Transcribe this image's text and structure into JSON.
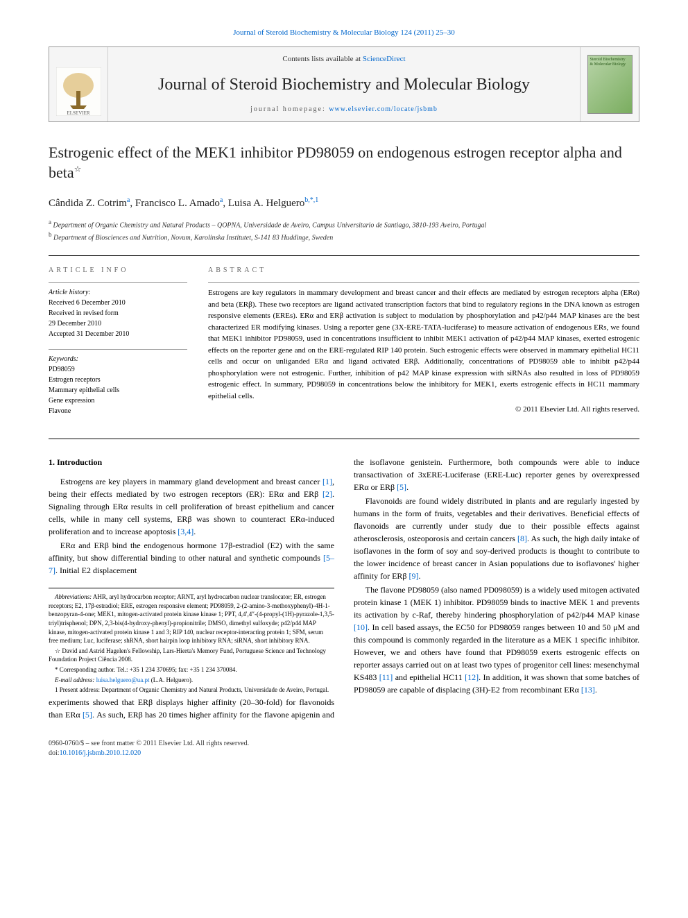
{
  "header_citation": "Journal of Steroid Biochemistry & Molecular Biology 124 (2011) 25–30",
  "banner": {
    "contents_prefix": "Contents lists available at ",
    "contents_link": "ScienceDirect",
    "journal_name": "Journal of Steroid Biochemistry and Molecular Biology",
    "homepage_prefix": "journal homepage: ",
    "homepage_url": "www.elsevier.com/locate/jsbmb",
    "cover_text": "Steroid Biochemistry & Molecular Biology"
  },
  "title": "Estrogenic effect of the MEK1 inhibitor PD98059 on endogenous estrogen receptor alpha and beta",
  "title_note": "☆",
  "authors_html": "Cândida Z. Cotrim<sup>a</sup>, Francisco L. Amado<sup>a</sup>, Luisa A. Helguero<sup>b,*,1</sup>",
  "affiliations": {
    "a": "Department of Organic Chemistry and Natural Products – QOPNA, Universidade de Aveiro, Campus Universitario de Santiago, 3810-193 Aveiro, Portugal",
    "b": "Department of Biosciences and Nutrition, Novum, Karolinska Institutet, S-141 83 Huddinge, Sweden"
  },
  "info": {
    "heading": "ARTICLE INFO",
    "history_label": "Article history:",
    "history": [
      "Received 6 December 2010",
      "Received in revised form",
      "29 December 2010",
      "Accepted 31 December 2010"
    ],
    "keywords_label": "Keywords:",
    "keywords": [
      "PD98059",
      "Estrogen receptors",
      "Mammary epithelial cells",
      "Gene expression",
      "Flavone"
    ]
  },
  "abstract": {
    "heading": "ABSTRACT",
    "text": "Estrogens are key regulators in mammary development and breast cancer and their effects are mediated by estrogen receptors alpha (ERα) and beta (ERβ). These two receptors are ligand activated transcription factors that bind to regulatory regions in the DNA known as estrogen responsive elements (EREs). ERα and ERβ activation is subject to modulation by phosphorylation and p42/p44 MAP kinases are the best characterized ER modifying kinases. Using a reporter gene (3X-ERE-TATA-luciferase) to measure activation of endogenous ERs, we found that MEK1 inhibitor PD98059, used in concentrations insufficient to inhibit MEK1 activation of p42/p44 MAP kinases, exerted estrogenic effects on the reporter gene and on the ERE-regulated RIP 140 protein. Such estrogenic effects were observed in mammary epithelial HC11 cells and occur on unliganded ERα and ligand activated ERβ. Additionally, concentrations of PD98059 able to inhibit p42/p44 phosphorylation were not estrogenic. Further, inhibition of p42 MAP kinase expression with siRNAs also resulted in loss of PD98059 estrogenic effect. In summary, PD98059 in concentrations below the inhibitory for MEK1, exerts estrogenic effects in HC11 mammary epithelial cells.",
    "copyright": "© 2011 Elsevier Ltd. All rights reserved."
  },
  "intro": {
    "heading": "1. Introduction",
    "p1": "Estrogens are key players in mammary gland development and breast cancer [1], being their effects mediated by two estrogen receptors (ER): ERα and ERβ [2]. Signaling through ERα results in cell proliferation of breast epithelium and cancer cells, while in many cell systems, ERβ was shown to counteract ERα-induced proliferation and to increase apoptosis [3,4].",
    "p2": "ERα and ERβ bind the endogenous hormone 17β-estradiol (E2) with the same affinity, but show differential binding to other natural and synthetic compounds [5–7]. Initial E2 displacement experiments showed that ERβ displays higher affinity (20–30-fold) for flavonoids than ERα [5]. As such, ERβ has 20 times higher affinity for the flavone apigenin and the isoflavone genistein. Furthermore, both compounds were able to induce transactivation of 3xERE-Luciferase (ERE-Luc) reporter genes by overexpressed ERα or ERβ [5].",
    "p3": "Flavonoids are found widely distributed in plants and are regularly ingested by humans in the form of fruits, vegetables and their derivatives. Beneficial effects of flavonoids are currently under study due to their possible effects against atherosclerosis, osteoporosis and certain cancers [8]. As such, the high daily intake of isoflavones in the form of soy and soy-derived products is thought to contribute to the lower incidence of breast cancer in Asian populations due to isoflavones' higher affinity for ERβ [9].",
    "p4": "The flavone PD98059 (also named PD098059) is a widely used mitogen activated protein kinase 1 (MEK 1) inhibitor. PD98059 binds to inactive MEK 1 and prevents its activation by c-Raf, thereby hindering phosphorylation of p42/p44 MAP kinase [10]. In cell based assays, the EC50 for PD98059 ranges between 10 and 50 μM and this compound is commonly regarded in the literature as a MEK 1 specific inhibitor. However, we and others have found that PD98059 exerts estrogenic effects on reporter assays carried out on at least two types of progenitor cell lines: mesenchymal KS483 [11] and epithelial HC11 [12]. In addition, it was shown that some batches of PD98059 are capable of displacing (3H)-E2 from recombinant ERα [13]."
  },
  "footnotes": {
    "abbrev_label": "Abbreviations:",
    "abbrev": "AHR, aryl hydrocarbon receptor; ARNT, aryl hydrocarbon nuclear translocator; ER, estrogen receptors; E2, 17β-estradiol; ERE, estrogen responsive element; PD98059, 2-(2-amino-3-methoxyphenyl)-4H-1-benzopyran-4-one; MEK1, mitogen-activated protein kinase kinase 1; PPT, 4,4′,4″-(4-propyl-(1H)-pyrazole-1,3,5-triyl)trisphenol; DPN, 2,3-bis(4-hydroxy-phenyl)-propionitrile; DMSO, dimethyl sulfoxyde; p42/p44 MAP kinase, mitogen-activated protein kinase 1 and 3; RIP 140, nuclear receptor-interacting protein 1; SFM, serum free medium; Luc, luciferase; shRNA, short hairpin loop inhibitory RNA; siRNA, short inhibitory RNA.",
    "star": "☆ David and Astrid Hagelen's Fellowship, Lars-Hierta's Memory Fund, Portuguese Science and Technology Foundation Project Ciência 2008.",
    "corr": "* Corresponding author. Tel.: +35 1 234 370695; fax: +35 1 234 370084.",
    "email_label": "E-mail address:",
    "email": "luisa.helguero@ua.pt",
    "email_suffix": "(L.A. Helguero).",
    "present": "1 Present address: Department of Organic Chemistry and Natural Products, Universidade de Aveiro, Portugal."
  },
  "footer": {
    "left1": "0960-0760/$ – see front matter © 2011 Elsevier Ltd. All rights reserved.",
    "left2_prefix": "doi:",
    "doi": "10.1016/j.jsbmb.2010.12.020"
  },
  "colors": {
    "link": "#0066cc",
    "text": "#000000",
    "muted": "#666666",
    "border": "#999999"
  }
}
